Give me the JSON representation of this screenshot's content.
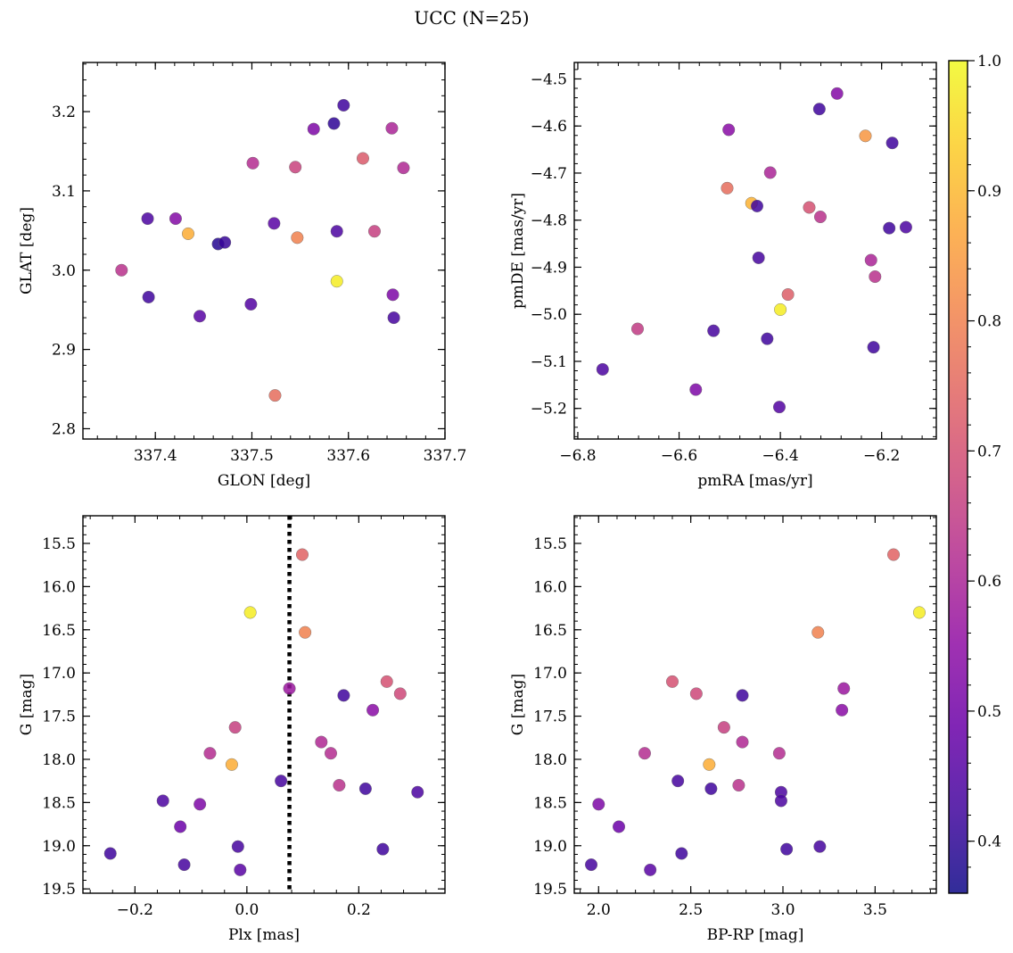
{
  "figure": {
    "title": "UCC (N=25)"
  },
  "colorbar": {
    "range": [
      0.36,
      1.0
    ],
    "ticks": [
      "0.4",
      "0.5",
      "0.6",
      "0.7",
      "0.8",
      "0.9",
      "1.0"
    ],
    "tick_values": [
      0.4,
      0.5,
      0.6,
      0.7,
      0.8,
      0.9,
      1.0
    ],
    "colormap": "plasma"
  },
  "chart_data": [
    {
      "type": "scatter",
      "name": "glon-glat",
      "xlabel": "GLON [deg]",
      "ylabel": "GLAT [deg]",
      "xlim": [
        337.325,
        337.7
      ],
      "ylim": [
        2.787,
        3.262
      ],
      "xticks": [
        337.4,
        337.5,
        337.6,
        337.7
      ],
      "xtick_labels": [
        "337.4",
        "337.5",
        "337.6",
        "337.7"
      ],
      "yticks": [
        2.8,
        2.9,
        3.0,
        3.1,
        3.2
      ],
      "ytick_labels": [
        "2.8",
        "2.9",
        "3.0",
        "3.1",
        "3.2"
      ],
      "x_minor_step": 0.02,
      "y_minor_step": 0.02,
      "y_inverted": false,
      "points": [
        {
          "x": 337.365,
          "y": 3.0,
          "c": 0.63
        },
        {
          "x": 337.392,
          "y": 3.065,
          "c": 0.44
        },
        {
          "x": 337.393,
          "y": 2.966,
          "c": 0.42
        },
        {
          "x": 337.421,
          "y": 3.065,
          "c": 0.53
        },
        {
          "x": 337.434,
          "y": 3.046,
          "c": 0.88
        },
        {
          "x": 337.446,
          "y": 2.942,
          "c": 0.46
        },
        {
          "x": 337.465,
          "y": 3.033,
          "c": 0.39
        },
        {
          "x": 337.472,
          "y": 3.035,
          "c": 0.41
        },
        {
          "x": 337.499,
          "y": 2.957,
          "c": 0.45
        },
        {
          "x": 337.501,
          "y": 3.135,
          "c": 0.62
        },
        {
          "x": 337.523,
          "y": 3.059,
          "c": 0.46
        },
        {
          "x": 337.524,
          "y": 2.842,
          "c": 0.76
        },
        {
          "x": 337.545,
          "y": 3.13,
          "c": 0.67
        },
        {
          "x": 337.547,
          "y": 3.041,
          "c": 0.8
        },
        {
          "x": 337.564,
          "y": 3.178,
          "c": 0.52
        },
        {
          "x": 337.585,
          "y": 3.185,
          "c": 0.4
        },
        {
          "x": 337.588,
          "y": 3.049,
          "c": 0.44
        },
        {
          "x": 337.588,
          "y": 2.986,
          "c": 0.98
        },
        {
          "x": 337.595,
          "y": 3.208,
          "c": 0.42
        },
        {
          "x": 337.615,
          "y": 3.141,
          "c": 0.72
        },
        {
          "x": 337.627,
          "y": 3.049,
          "c": 0.66
        },
        {
          "x": 337.645,
          "y": 3.179,
          "c": 0.6
        },
        {
          "x": 337.646,
          "y": 2.969,
          "c": 0.52
        },
        {
          "x": 337.647,
          "y": 2.94,
          "c": 0.43
        },
        {
          "x": 337.657,
          "y": 3.129,
          "c": 0.61
        }
      ]
    },
    {
      "type": "scatter",
      "name": "pmra-pmde",
      "xlabel": "pmRA [mas/yr]",
      "ylabel": "pmDE [mas/yr]",
      "xlim": [
        -6.807,
        -6.092
      ],
      "ylim": [
        -5.265,
        -4.465
      ],
      "xticks": [
        -6.8,
        -6.6,
        -6.4,
        -6.2
      ],
      "xtick_labels": [
        "−6.8",
        "−6.6",
        "−6.4",
        "−6.2"
      ],
      "yticks": [
        -5.2,
        -5.1,
        -5.0,
        -4.9,
        -4.8,
        -4.7,
        -4.6,
        -4.5
      ],
      "ytick_labels": [
        "−5.2",
        "−5.1",
        "−5.0",
        "−4.9",
        "−4.8",
        "−4.7",
        "−4.6",
        "−4.5"
      ],
      "x_minor_step": 0.04,
      "y_minor_step": 0.02,
      "y_inverted": false,
      "points": [
        {
          "x": -6.751,
          "y": -5.117,
          "c": 0.44
        },
        {
          "x": -6.682,
          "y": -5.031,
          "c": 0.65
        },
        {
          "x": -6.567,
          "y": -5.16,
          "c": 0.52
        },
        {
          "x": -6.532,
          "y": -5.035,
          "c": 0.43
        },
        {
          "x": -6.505,
          "y": -4.732,
          "c": 0.76
        },
        {
          "x": -6.502,
          "y": -4.608,
          "c": 0.54
        },
        {
          "x": -6.457,
          "y": -4.764,
          "c": 0.89
        },
        {
          "x": -6.446,
          "y": -4.77,
          "c": 0.42
        },
        {
          "x": -6.443,
          "y": -4.88,
          "c": 0.43
        },
        {
          "x": -6.426,
          "y": -5.052,
          "c": 0.42
        },
        {
          "x": -6.42,
          "y": -4.699,
          "c": 0.6
        },
        {
          "x": -6.402,
          "y": -5.197,
          "c": 0.45
        },
        {
          "x": -6.4,
          "y": -4.99,
          "c": 0.98
        },
        {
          "x": -6.385,
          "y": -4.958,
          "c": 0.73
        },
        {
          "x": -6.343,
          "y": -4.773,
          "c": 0.7
        },
        {
          "x": -6.321,
          "y": -4.793,
          "c": 0.63
        },
        {
          "x": -6.323,
          "y": -4.564,
          "c": 0.42
        },
        {
          "x": -6.288,
          "y": -4.531,
          "c": 0.53
        },
        {
          "x": -6.232,
          "y": -4.621,
          "c": 0.84
        },
        {
          "x": -6.221,
          "y": -4.885,
          "c": 0.6
        },
        {
          "x": -6.216,
          "y": -5.07,
          "c": 0.42
        },
        {
          "x": -6.213,
          "y": -4.92,
          "c": 0.63
        },
        {
          "x": -6.185,
          "y": -4.817,
          "c": 0.42
        },
        {
          "x": -6.179,
          "y": -4.636,
          "c": 0.42
        },
        {
          "x": -6.152,
          "y": -4.815,
          "c": 0.44
        }
      ]
    },
    {
      "type": "scatter",
      "name": "plx-g",
      "xlabel": "Plx [mas]",
      "ylabel": "G [mag]",
      "xlim": [
        -0.293,
        0.354
      ],
      "ylim": [
        15.18,
        19.55
      ],
      "xticks": [
        -0.2,
        0.0,
        0.2
      ],
      "xtick_labels": [
        "−0.2",
        "0.0",
        "0.2"
      ],
      "yticks": [
        15.5,
        16.0,
        16.5,
        17.0,
        17.5,
        18.0,
        18.5,
        19.0,
        19.5
      ],
      "ytick_labels": [
        "15.5",
        "16.0",
        "16.5",
        "17.0",
        "17.5",
        "18.0",
        "18.5",
        "19.0",
        "19.5"
      ],
      "x_minor_step": 0.04,
      "y_minor_step": 0.1,
      "y_inverted": true,
      "vline": 0.076,
      "points": [
        {
          "x": 0.099,
          "y": 15.63,
          "c": 0.74
        },
        {
          "x": 0.006,
          "y": 16.3,
          "c": 0.98
        },
        {
          "x": 0.104,
          "y": 16.53,
          "c": 0.8
        },
        {
          "x": 0.25,
          "y": 17.1,
          "c": 0.7
        },
        {
          "x": 0.274,
          "y": 17.24,
          "c": 0.68
        },
        {
          "x": 0.076,
          "y": 17.18,
          "c": 0.57
        },
        {
          "x": 0.173,
          "y": 17.26,
          "c": 0.42
        },
        {
          "x": 0.225,
          "y": 17.43,
          "c": 0.54
        },
        {
          "x": -0.021,
          "y": 17.63,
          "c": 0.66
        },
        {
          "x": 0.133,
          "y": 17.8,
          "c": 0.61
        },
        {
          "x": -0.066,
          "y": 17.93,
          "c": 0.62
        },
        {
          "x": 0.15,
          "y": 17.93,
          "c": 0.62
        },
        {
          "x": -0.027,
          "y": 18.06,
          "c": 0.88
        },
        {
          "x": 0.061,
          "y": 18.25,
          "c": 0.43
        },
        {
          "x": 0.165,
          "y": 18.3,
          "c": 0.63
        },
        {
          "x": 0.212,
          "y": 18.34,
          "c": 0.42
        },
        {
          "x": 0.305,
          "y": 18.38,
          "c": 0.44
        },
        {
          "x": -0.15,
          "y": 18.48,
          "c": 0.44
        },
        {
          "x": -0.084,
          "y": 18.52,
          "c": 0.52
        },
        {
          "x": -0.119,
          "y": 18.78,
          "c": 0.49
        },
        {
          "x": -0.016,
          "y": 19.01,
          "c": 0.43
        },
        {
          "x": 0.243,
          "y": 19.04,
          "c": 0.42
        },
        {
          "x": -0.244,
          "y": 19.09,
          "c": 0.42
        },
        {
          "x": -0.112,
          "y": 19.22,
          "c": 0.43
        },
        {
          "x": -0.012,
          "y": 19.28,
          "c": 0.46
        }
      ]
    },
    {
      "type": "scatter",
      "name": "bprp-g",
      "xlabel": "BP-RP [mag]",
      "ylabel": "G [mag]",
      "xlim": [
        1.868,
        3.832
      ],
      "ylim": [
        15.18,
        19.55
      ],
      "xticks": [
        2.0,
        2.5,
        3.0,
        3.5
      ],
      "xtick_labels": [
        "2.0",
        "2.5",
        "3.0",
        "3.5"
      ],
      "yticks": [
        15.5,
        16.0,
        16.5,
        17.0,
        17.5,
        18.0,
        18.5,
        19.0,
        19.5
      ],
      "ytick_labels": [
        "15.5",
        "16.0",
        "16.5",
        "17.0",
        "17.5",
        "18.0",
        "18.5",
        "19.0",
        "19.5"
      ],
      "x_minor_step": 0.1,
      "y_minor_step": 0.1,
      "y_inverted": true,
      "points": [
        {
          "x": 3.6,
          "y": 15.63,
          "c": 0.74
        },
        {
          "x": 3.74,
          "y": 16.3,
          "c": 0.98
        },
        {
          "x": 3.19,
          "y": 16.53,
          "c": 0.8
        },
        {
          "x": 2.4,
          "y": 17.1,
          "c": 0.7
        },
        {
          "x": 2.53,
          "y": 17.24,
          "c": 0.68
        },
        {
          "x": 3.33,
          "y": 17.18,
          "c": 0.57
        },
        {
          "x": 2.78,
          "y": 17.26,
          "c": 0.42
        },
        {
          "x": 3.32,
          "y": 17.43,
          "c": 0.54
        },
        {
          "x": 2.68,
          "y": 17.63,
          "c": 0.66
        },
        {
          "x": 2.78,
          "y": 17.8,
          "c": 0.61
        },
        {
          "x": 2.25,
          "y": 17.93,
          "c": 0.62
        },
        {
          "x": 2.98,
          "y": 17.93,
          "c": 0.62
        },
        {
          "x": 2.6,
          "y": 18.06,
          "c": 0.88
        },
        {
          "x": 2.43,
          "y": 18.25,
          "c": 0.43
        },
        {
          "x": 2.76,
          "y": 18.3,
          "c": 0.63
        },
        {
          "x": 2.61,
          "y": 18.34,
          "c": 0.42
        },
        {
          "x": 2.99,
          "y": 18.38,
          "c": 0.44
        },
        {
          "x": 2.99,
          "y": 18.48,
          "c": 0.44
        },
        {
          "x": 2.0,
          "y": 18.52,
          "c": 0.52
        },
        {
          "x": 2.11,
          "y": 18.78,
          "c": 0.49
        },
        {
          "x": 3.2,
          "y": 19.01,
          "c": 0.43
        },
        {
          "x": 3.02,
          "y": 19.04,
          "c": 0.42
        },
        {
          "x": 2.45,
          "y": 19.09,
          "c": 0.42
        },
        {
          "x": 1.96,
          "y": 19.22,
          "c": 0.43
        },
        {
          "x": 2.28,
          "y": 19.28,
          "c": 0.46
        }
      ]
    }
  ]
}
